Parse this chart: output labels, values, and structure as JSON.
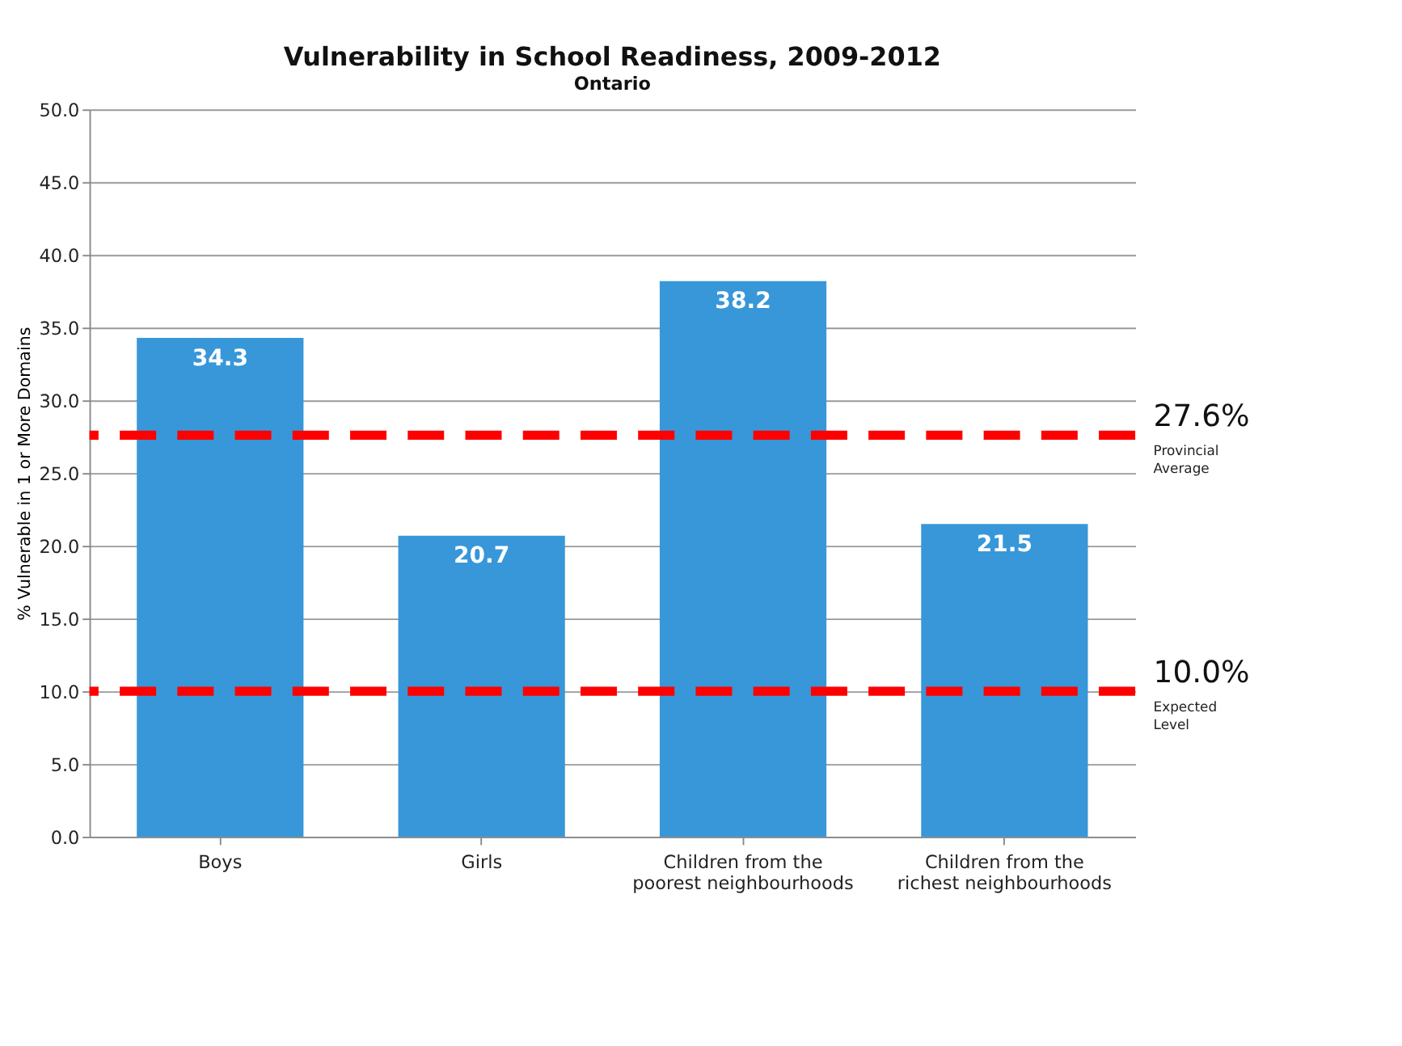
{
  "chart_data": {
    "type": "bar",
    "title": "Vulnerability in School Readiness, 2009-2012",
    "subtitle": "Ontario",
    "ylabel": "% Vulnerable in 1 or More Domains",
    "categories": [
      "Boys",
      "Girls",
      "Children from the poorest neighbourhoods",
      "Children from the richest neighbourhoods"
    ],
    "values": [
      34.3,
      20.7,
      38.2,
      21.5
    ],
    "color": "#3797d9",
    "data_labels": true,
    "ylim": [
      0,
      50
    ],
    "yticks": [
      {
        "value": 0,
        "label": "0.0"
      },
      {
        "value": 5,
        "label": "5.0"
      },
      {
        "value": 10,
        "label": "10.0"
      },
      {
        "value": 15,
        "label": "15.0"
      },
      {
        "value": 20,
        "label": "20.0"
      },
      {
        "value": 25,
        "label": "25.0"
      },
      {
        "value": 30,
        "label": "30.0"
      },
      {
        "value": 35,
        "label": "35.0"
      },
      {
        "value": 40,
        "label": "40.0"
      },
      {
        "value": 45,
        "label": "45.0"
      },
      {
        "value": 50,
        "label": "50.0"
      }
    ],
    "grid": "y",
    "ref_lines": [
      {
        "axis": "y",
        "value": 27.6,
        "label": "27.6% Provincial Average",
        "color": "#ff0000",
        "line_style": "dashed"
      },
      {
        "axis": "y",
        "value": 10.0,
        "label": "10.0% Expected Level",
        "color": "#ff0000",
        "line_style": "dashed"
      }
    ]
  }
}
